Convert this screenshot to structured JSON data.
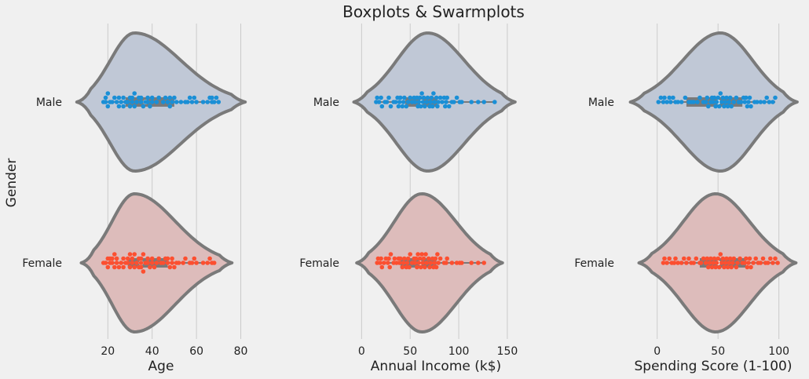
{
  "chart_data": {
    "type": "violin-swarm",
    "title": "Boxplots & Swarmplots",
    "ylabel": "Gender",
    "categories": [
      "Male",
      "Female"
    ],
    "colors": {
      "Male": {
        "violin": "#c0c8d6",
        "points": "#1a8fd6"
      },
      "Female": {
        "violin": "#ddbcbb",
        "points": "#fc4f30"
      },
      "outline": "#7a7a7a",
      "grid": "#cbcbcb",
      "background": "#f0f0f0"
    },
    "panels": [
      {
        "xlabel": "Age",
        "xlim": [
          5,
          83
        ],
        "xticks": [
          20,
          40,
          60,
          80
        ],
        "stats": {
          "Male": {
            "min": 18,
            "q1": 28,
            "median": 37,
            "q3": 50,
            "max": 70,
            "range": [
              6,
              82
            ],
            "peak": 32
          },
          "Female": {
            "min": 18,
            "q1": 29,
            "median": 35,
            "q3": 47,
            "max": 68,
            "range": [
              8,
              76
            ],
            "peak": 32
          }
        }
      },
      {
        "xlabel": "Annual Income (k$)",
        "xlim": [
          -10,
          163
        ],
        "xticks": [
          0,
          50,
          100,
          150
        ],
        "stats": {
          "Male": {
            "min": 15,
            "q1": 45,
            "median": 62,
            "q3": 78,
            "max": 137,
            "range": [
              -8,
              158
            ],
            "peak": 68
          },
          "Female": {
            "min": 16,
            "q1": 40,
            "median": 60,
            "q3": 77,
            "max": 126,
            "range": [
              -5,
              145
            ],
            "peak": 62
          }
        }
      },
      {
        "xlabel": "Spending Score (1-100)",
        "xlim": [
          -25,
          117
        ],
        "xticks": [
          0,
          50,
          100
        ],
        "stats": {
          "Male": {
            "min": 1,
            "q1": 24,
            "median": 50,
            "q3": 70,
            "max": 97,
            "range": [
              -22,
              115
            ],
            "peak": 52
          },
          "Female": {
            "min": 5,
            "q1": 35,
            "median": 50,
            "q3": 73,
            "max": 99,
            "range": [
              -15,
              114
            ],
            "peak": 48
          }
        }
      }
    ],
    "swarm": {
      "Male": {
        "Age": [
          18,
          19,
          19,
          20,
          20,
          21,
          22,
          23,
          24,
          25,
          25,
          26,
          27,
          27,
          28,
          29,
          30,
          30,
          31,
          31,
          32,
          32,
          33,
          34,
          35,
          35,
          36,
          37,
          38,
          38,
          39,
          40,
          40,
          42,
          43,
          45,
          46,
          47,
          48,
          48,
          49,
          50,
          51,
          53,
          55,
          56,
          57,
          58,
          59,
          60,
          63,
          65,
          66,
          67,
          67,
          68,
          69,
          70
        ],
        "Income": [
          15,
          16,
          18,
          20,
          21,
          24,
          26,
          28,
          30,
          33,
          35,
          37,
          38,
          39,
          40,
          42,
          43,
          44,
          46,
          48,
          50,
          52,
          54,
          55,
          57,
          58,
          59,
          60,
          61,
          62,
          63,
          64,
          65,
          67,
          68,
          70,
          71,
          72,
          73,
          74,
          75,
          77,
          78,
          79,
          81,
          83,
          85,
          86,
          87,
          88,
          90,
          93,
          95,
          98,
          101,
          103,
          113,
          120,
          126,
          137
        ],
        "Score": [
          1,
          3,
          5,
          6,
          8,
          10,
          11,
          13,
          15,
          17,
          20,
          23,
          26,
          28,
          30,
          33,
          35,
          38,
          40,
          41,
          42,
          44,
          45,
          46,
          47,
          48,
          49,
          50,
          51,
          52,
          53,
          54,
          55,
          56,
          57,
          58,
          59,
          60,
          61,
          63,
          65,
          67,
          69,
          71,
          72,
          73,
          74,
          75,
          76,
          77,
          80,
          82,
          85,
          88,
          90,
          92,
          95,
          97
        ]
      },
      "Female": {
        "Age": [
          18,
          19,
          20,
          20,
          21,
          21,
          22,
          22,
          23,
          23,
          24,
          24,
          25,
          26,
          27,
          27,
          28,
          29,
          29,
          30,
          30,
          31,
          31,
          32,
          32,
          33,
          34,
          34,
          35,
          35,
          35,
          36,
          36,
          37,
          38,
          38,
          39,
          40,
          40,
          41,
          42,
          43,
          44,
          45,
          46,
          47,
          47,
          48,
          49,
          49,
          50,
          51,
          52,
          54,
          55,
          57,
          58,
          59,
          60,
          63,
          65,
          66,
          67,
          68
        ],
        "Income": [
          16,
          17,
          19,
          20,
          21,
          23,
          25,
          27,
          28,
          29,
          30,
          33,
          34,
          36,
          38,
          39,
          40,
          42,
          43,
          44,
          46,
          47,
          48,
          49,
          50,
          52,
          54,
          55,
          56,
          57,
          58,
          59,
          60,
          61,
          62,
          63,
          64,
          65,
          66,
          67,
          69,
          70,
          71,
          73,
          74,
          75,
          76,
          77,
          78,
          79,
          81,
          85,
          87,
          88,
          93,
          98,
          101,
          103,
          113,
          120,
          126
        ],
        "Score": [
          5,
          6,
          8,
          10,
          12,
          14,
          15,
          17,
          20,
          22,
          24,
          26,
          28,
          30,
          32,
          35,
          36,
          38,
          40,
          41,
          42,
          43,
          44,
          45,
          46,
          47,
          48,
          49,
          50,
          51,
          52,
          53,
          54,
          55,
          56,
          57,
          58,
          59,
          60,
          61,
          62,
          63,
          65,
          66,
          68,
          70,
          72,
          73,
          74,
          75,
          76,
          77,
          79,
          81,
          83,
          85,
          87,
          89,
          91,
          93,
          95,
          97,
          99
        ]
      }
    }
  }
}
